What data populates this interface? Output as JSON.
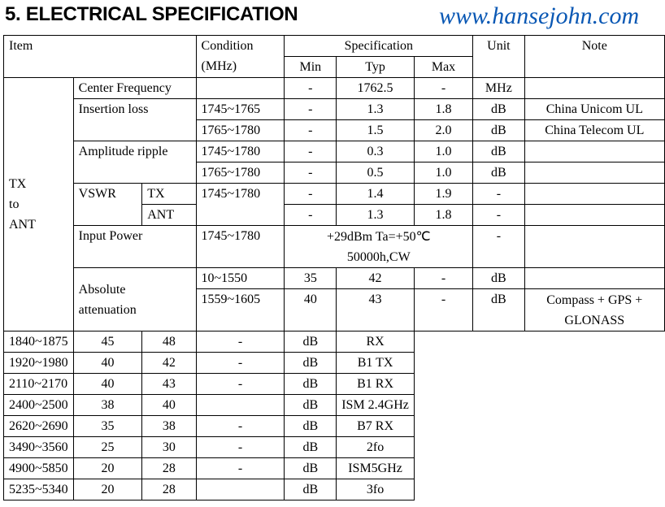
{
  "title": "5. ELECTRICAL SPECIFICATION",
  "watermark": "www.hansejohn.com",
  "header": {
    "item": "Item",
    "condition_1": "Condition",
    "condition_2": "(MHz)",
    "specification": "Specification",
    "min": "Min",
    "typ": "Typ",
    "max": "Max",
    "unit": "Unit",
    "note": "Note"
  },
  "group": {
    "l1": "TX",
    "l2": "to",
    "l3": "ANT"
  },
  "center": {
    "item": "Center Frequency",
    "cond": "",
    "min": "-",
    "typ": "1762.5",
    "max": "-",
    "unit": "MHz",
    "note": ""
  },
  "insertion": {
    "item": "Insertion loss",
    "rows": [
      {
        "cond": "1745~1765",
        "min": "-",
        "typ": "1.3",
        "max": "1.8",
        "unit": "dB",
        "note": "China Unicom UL"
      },
      {
        "cond": "1765~1780",
        "min": "-",
        "typ": "1.5",
        "max": "2.0",
        "unit": "dB",
        "note": "China Telecom UL"
      }
    ]
  },
  "ripple": {
    "item": "Amplitude ripple",
    "rows": [
      {
        "cond": "1745~1780",
        "min": "-",
        "typ": "0.3",
        "max": "1.0",
        "unit": "dB",
        "note": ""
      },
      {
        "cond": "1765~1780",
        "min": "-",
        "typ": "0.5",
        "max": "1.0",
        "unit": "dB",
        "note": ""
      }
    ]
  },
  "vswr": {
    "item": "VSWR",
    "cond": "1745~1780",
    "rows": [
      {
        "port": "TX",
        "min": "-",
        "typ": "1.4",
        "max": "1.9",
        "unit": "-",
        "note": ""
      },
      {
        "port": "ANT",
        "min": "-",
        "typ": "1.3",
        "max": "1.8",
        "unit": "-",
        "note": ""
      }
    ]
  },
  "input_power": {
    "item": "Input Power",
    "cond": "1745~1780",
    "spec_1": "+29dBm Ta=+50℃",
    "spec_2": "50000h,CW",
    "unit": "-",
    "note": ""
  },
  "attenuation": {
    "item_1": "Absolute",
    "item_2": "attenuation",
    "rows": [
      {
        "cond": "10~1550",
        "min": "35",
        "typ": "42",
        "max": "-",
        "unit": "dB",
        "note": ""
      },
      {
        "cond": "1559~1605",
        "min": "40",
        "typ": "43",
        "max": "-",
        "unit": "dB",
        "note": "Compass + GPS +",
        "note2": "GLONASS"
      },
      {
        "cond": "1840~1875",
        "min": "45",
        "typ": "48",
        "max": "-",
        "unit": "dB",
        "note": "RX"
      },
      {
        "cond": "1920~1980",
        "min": "40",
        "typ": "42",
        "max": "-",
        "unit": "dB",
        "note": "B1 TX"
      },
      {
        "cond": "2110~2170",
        "min": "40",
        "typ": "43",
        "max": "-",
        "unit": "dB",
        "note": "B1 RX"
      },
      {
        "cond": "2400~2500",
        "min": "38",
        "typ": "40",
        "max": "",
        "unit": "dB",
        "note": "ISM 2.4GHz"
      },
      {
        "cond": "2620~2690",
        "min": "35",
        "typ": "38",
        "max": "-",
        "unit": "dB",
        "note": "B7 RX"
      },
      {
        "cond": "3490~3560",
        "min": "25",
        "typ": "30",
        "max": "-",
        "unit": "dB",
        "note": "2fo"
      },
      {
        "cond": "4900~5850",
        "min": "20",
        "typ": "28",
        "max": "-",
        "unit": "dB",
        "note": "ISM5GHz"
      },
      {
        "cond": "5235~5340",
        "min": "20",
        "typ": "28",
        "max": "",
        "unit": "dB",
        "note": "3fo"
      }
    ]
  }
}
